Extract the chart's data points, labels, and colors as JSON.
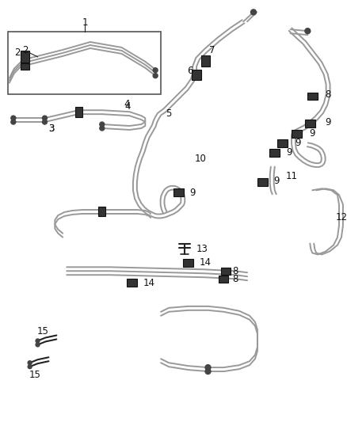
{
  "bg_color": "#ffffff",
  "line_color": "#999999",
  "dark_color": "#222222",
  "lw": 1.4,
  "lw2": 1.1,
  "fs": 8.5
}
